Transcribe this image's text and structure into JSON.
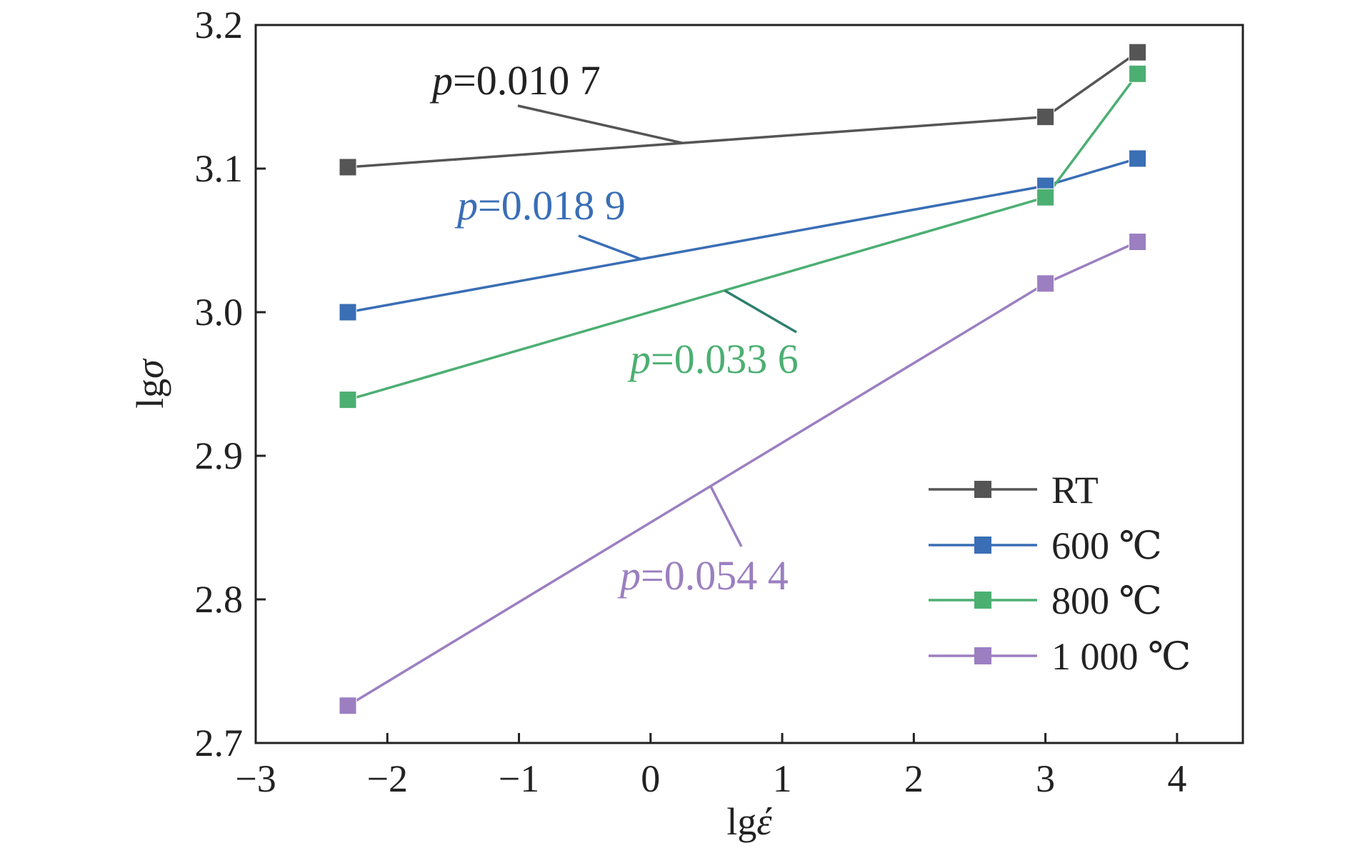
{
  "chart_data": {
    "type": "line",
    "xlabel_base": "lg",
    "xlabel_symbol": "έ",
    "ylabel_base": "lg",
    "ylabel_symbol": "σ",
    "xlim": [
      -3,
      4.5
    ],
    "ylim": [
      2.7,
      3.2
    ],
    "xticks": [
      -3,
      -2,
      -1,
      0,
      1,
      2,
      3,
      4
    ],
    "xtick_labels": [
      "−3",
      "−2",
      "−1",
      "0",
      "1",
      "2",
      "3",
      "4"
    ],
    "yticks": [
      2.7,
      2.8,
      2.9,
      3.0,
      3.1,
      3.2
    ],
    "ytick_labels": [
      "2.7",
      "2.8",
      "2.9",
      "3.0",
      "3.1",
      "3.2"
    ],
    "grid": false,
    "legend_position": "bottom-right",
    "series": [
      {
        "name": "RT",
        "color": "#555555",
        "x": [
          -2.3,
          3.0,
          3.7
        ],
        "y": [
          3.101,
          3.136,
          3.181
        ]
      },
      {
        "name": "600 ℃",
        "color": "#3a6eb5",
        "x": [
          -2.3,
          3.0,
          3.7
        ],
        "y": [
          3.0,
          3.088,
          3.107
        ]
      },
      {
        "name": "800 ℃",
        "color": "#4caf72",
        "x": [
          -2.3,
          3.0,
          3.7
        ],
        "y": [
          2.939,
          3.08,
          3.166
        ]
      },
      {
        "name": "1 000 ℃",
        "color": "#9b7fc1",
        "x": [
          -2.3,
          3.0,
          3.7
        ],
        "y": [
          2.726,
          3.02,
          3.049
        ]
      }
    ],
    "annotations": [
      {
        "text_italic": "p",
        "text": "=0.010 7",
        "color": "#222222",
        "line_color": "#555555",
        "series": "RT"
      },
      {
        "text_italic": "p",
        "text": "=0.018 9",
        "color": "#3a6eb5",
        "line_color": "#3a6eb5",
        "series": "600 ℃"
      },
      {
        "text_italic": "p",
        "text": "=0.033 6",
        "color": "#4caf72",
        "line_color": "#2f7f6e",
        "series": "800 ℃"
      },
      {
        "text_italic": "p",
        "text": "=0.054 4",
        "color": "#9b7fc1",
        "line_color": "#9b7fc1",
        "series": "1 000 ℃"
      }
    ]
  }
}
